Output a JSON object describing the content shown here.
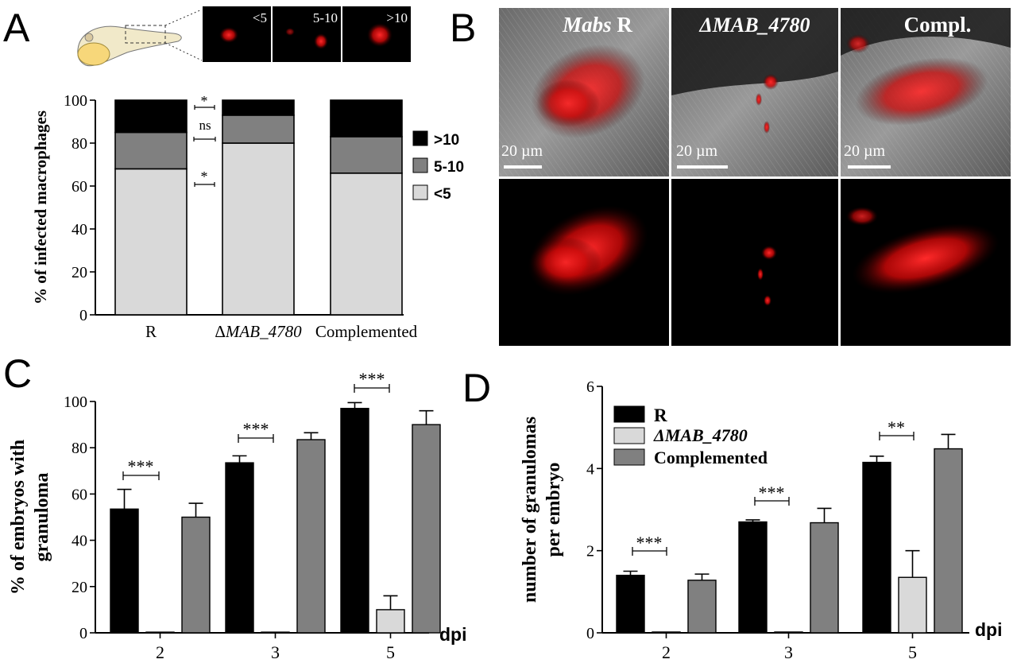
{
  "panels": {
    "A": {
      "letter": "A",
      "inset_labels": [
        "<5",
        "5-10",
        ">10"
      ],
      "legend": [
        {
          "label": ">10",
          "color": "#000000"
        },
        {
          "label": "5-10",
          "color": "#808080"
        },
        {
          "label": "<5",
          "color": "#d9d9d9"
        }
      ],
      "sig": [
        "*",
        "ns",
        "*"
      ]
    },
    "B": {
      "letter": "B",
      "col_titles": [
        {
          "italic": "Mabs",
          "rest": " R"
        },
        {
          "italic": "ΔMAB_4780",
          "rest": ""
        },
        {
          "italic": "",
          "rest": "Compl."
        }
      ],
      "scale_bar": "20 µm"
    },
    "C": {
      "letter": "C",
      "dpi_label": "dpi",
      "sig": [
        "***",
        "***",
        "***"
      ]
    },
    "D": {
      "letter": "D",
      "dpi_label": "dpi",
      "sig": [
        "***",
        "***",
        "**"
      ],
      "legend": [
        {
          "label": "R",
          "color": "#000000"
        },
        {
          "label": "ΔMAB_4780",
          "color": "#d9d9d9"
        },
        {
          "label": "Complemented",
          "color": "#808080"
        }
      ]
    }
  },
  "chart_data": [
    {
      "id": "A",
      "type": "bar",
      "stacked": true,
      "categories": [
        "R",
        "ΔMAB_4780",
        "Complemented"
      ],
      "series": [
        {
          "name": "<5",
          "values": [
            68,
            80,
            66
          ],
          "color": "#d9d9d9"
        },
        {
          "name": "5-10",
          "values": [
            17,
            13,
            17
          ],
          "color": "#808080"
        },
        {
          "name": ">10",
          "values": [
            15,
            7,
            17
          ],
          "color": "#000000"
        }
      ],
      "ylabel": "% of infected macrophages",
      "ylim": [
        0,
        100
      ],
      "yticks": [
        0,
        20,
        40,
        60,
        80,
        100
      ]
    },
    {
      "id": "C",
      "type": "bar",
      "categories": [
        "2",
        "3",
        "5"
      ],
      "series": [
        {
          "name": "R",
          "values": [
            53.5,
            73.5,
            97
          ],
          "errors": [
            8.5,
            3,
            2.5
          ],
          "color": "#000000"
        },
        {
          "name": "ΔMAB_4780",
          "values": [
            0.3,
            0.3,
            10
          ],
          "errors": [
            0,
            0,
            6
          ],
          "color": "#d9d9d9"
        },
        {
          "name": "Complemented",
          "values": [
            50,
            83.5,
            90
          ],
          "errors": [
            6,
            3,
            6
          ],
          "color": "#808080"
        }
      ],
      "ylabel": "% of embryos with granuloma",
      "xlabel": "dpi",
      "ylim": [
        0,
        100
      ],
      "yticks": [
        0,
        20,
        40,
        60,
        80,
        100
      ]
    },
    {
      "id": "D",
      "type": "bar",
      "categories": [
        "2",
        "3",
        "5"
      ],
      "series": [
        {
          "name": "R",
          "values": [
            1.4,
            2.7,
            4.15
          ],
          "errors": [
            0.1,
            0.05,
            0.15
          ],
          "color": "#000000"
        },
        {
          "name": "ΔMAB_4780",
          "values": [
            0.02,
            0.02,
            1.35
          ],
          "errors": [
            0,
            0,
            0.65
          ],
          "color": "#d9d9d9"
        },
        {
          "name": "Complemented",
          "values": [
            1.28,
            2.68,
            4.48
          ],
          "errors": [
            0.15,
            0.35,
            0.35
          ],
          "color": "#808080"
        }
      ],
      "ylabel": "number of granulomas per embryo",
      "xlabel": "dpi",
      "ylim": [
        0,
        6
      ],
      "yticks": [
        0,
        2,
        4,
        6
      ]
    }
  ]
}
